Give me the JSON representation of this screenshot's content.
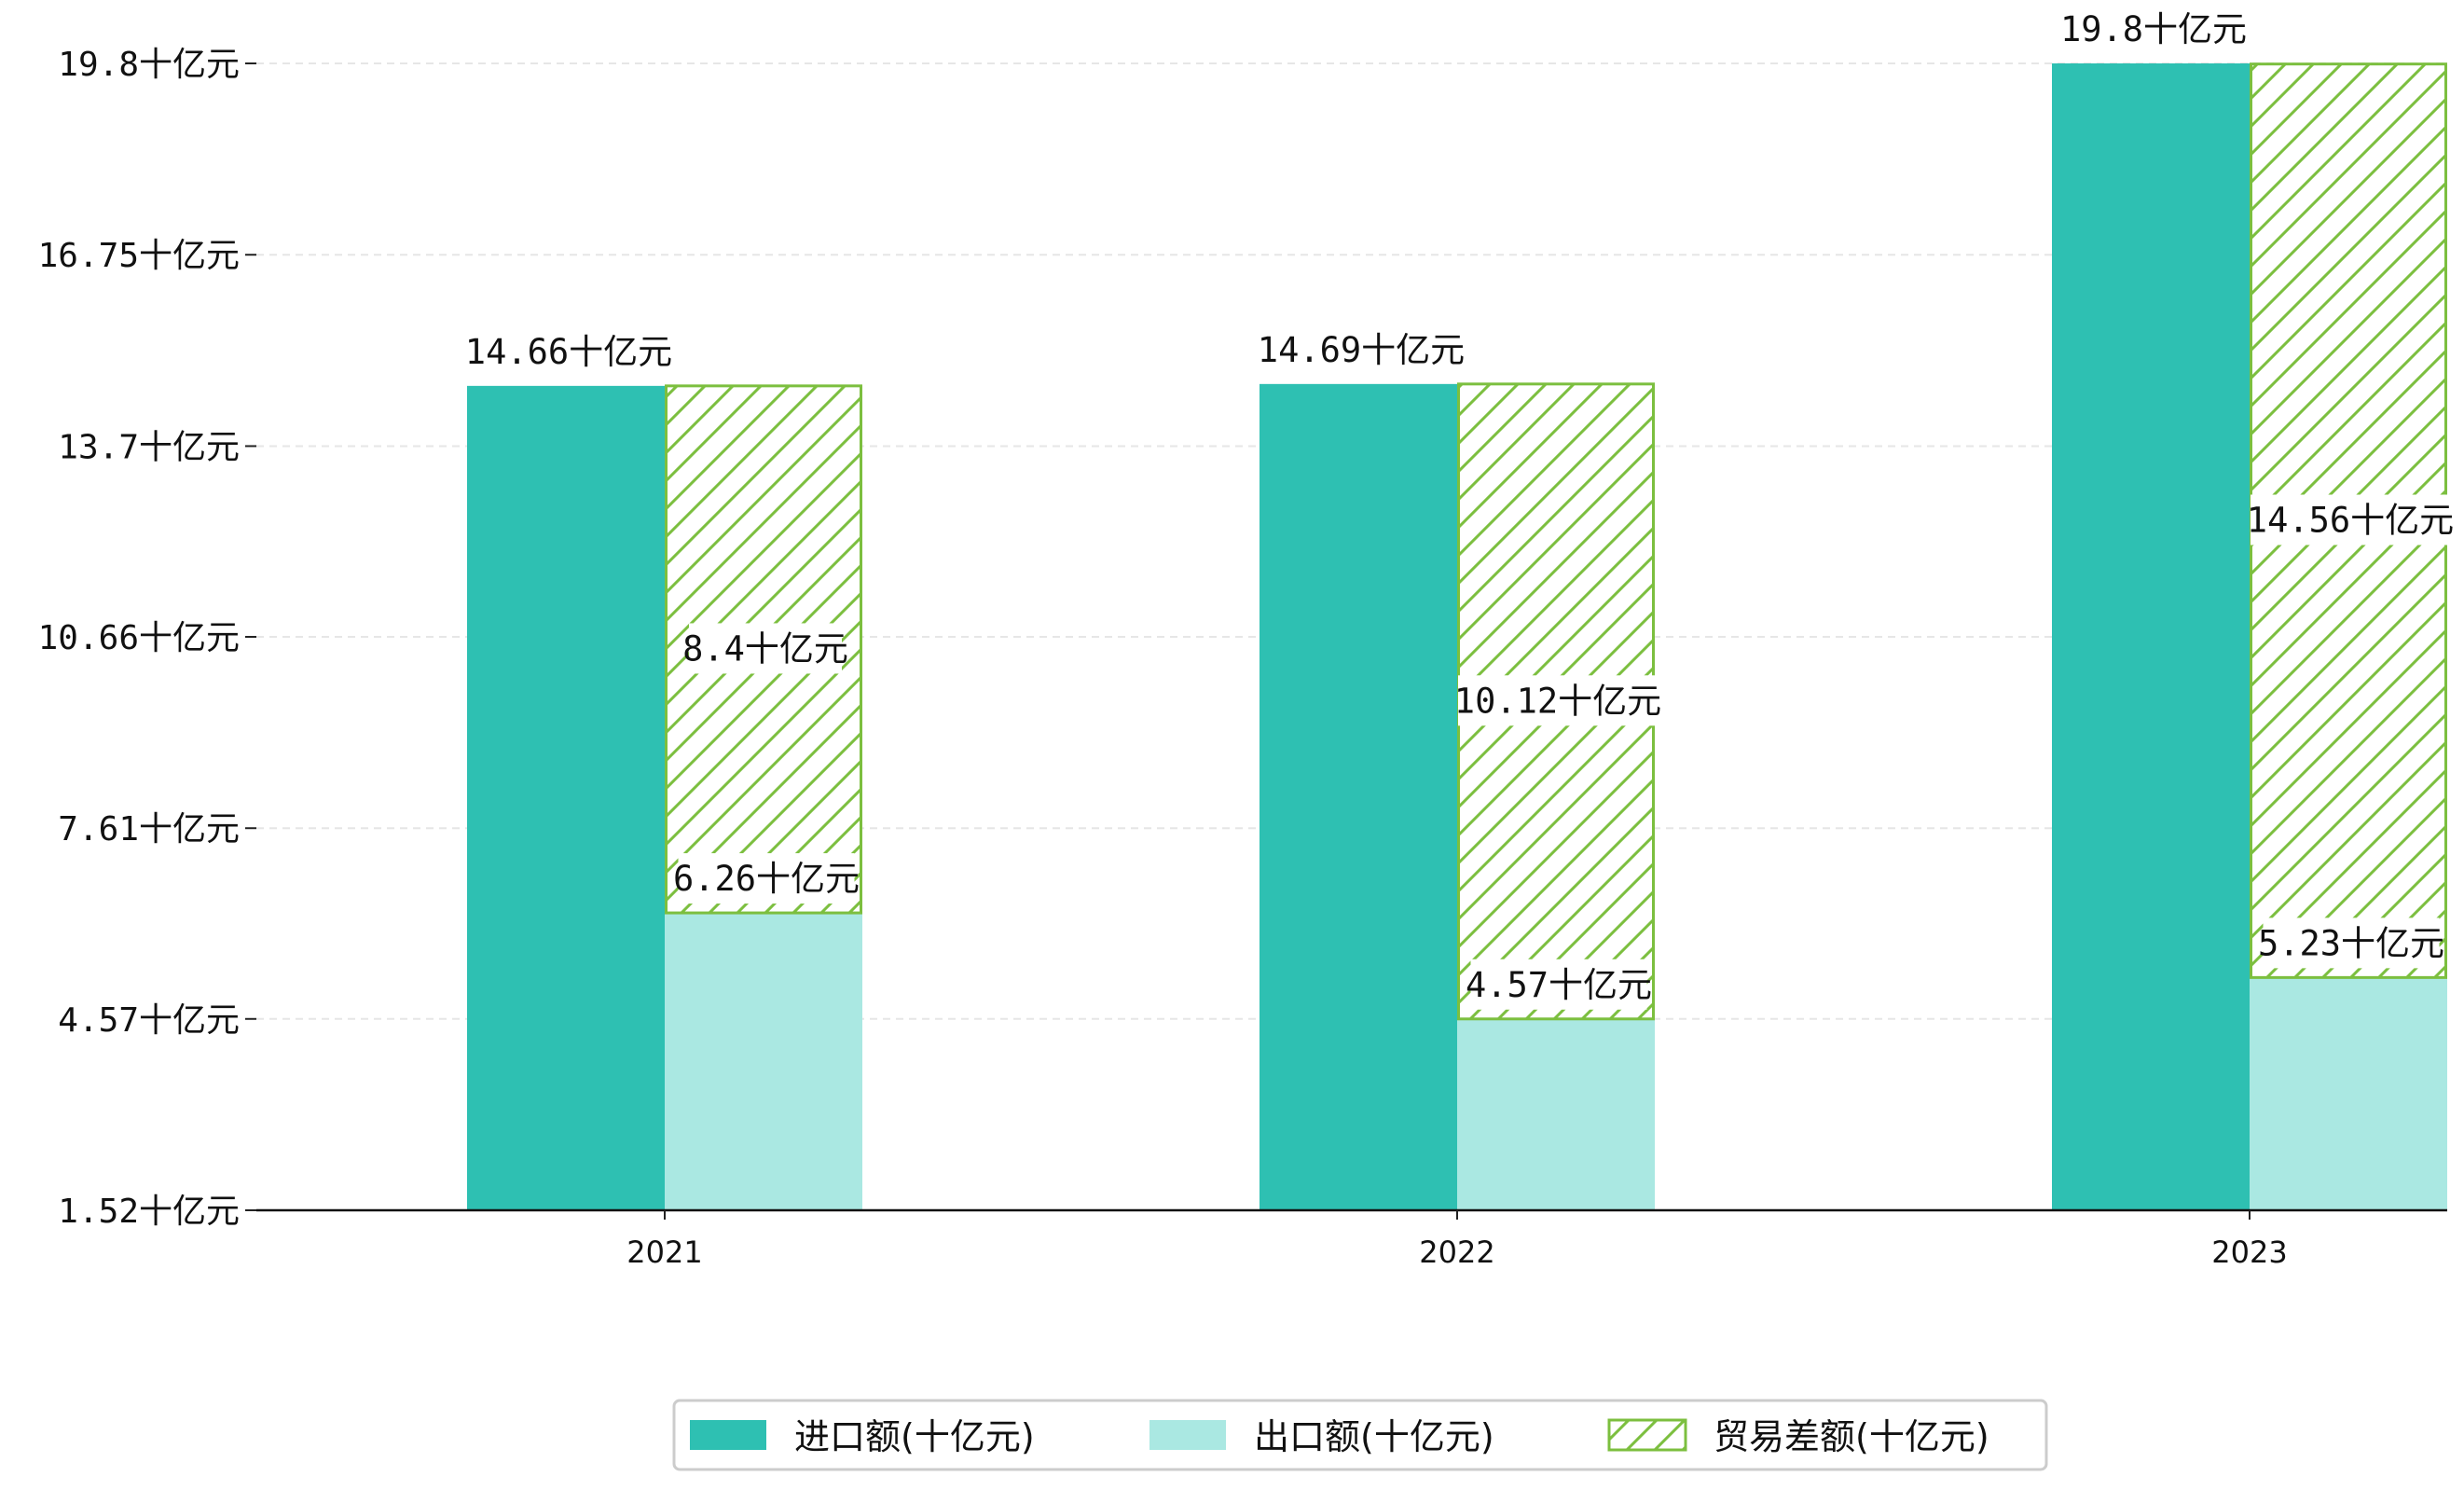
{
  "chart_data": {
    "type": "bar",
    "categories": [
      "2021",
      "2022",
      "2023"
    ],
    "series": [
      {
        "name": "进口额(十亿元)",
        "values": [
          14.66,
          14.69,
          19.8
        ],
        "color": "#2ec0b2",
        "labels": [
          "14.66十亿元",
          "14.69十亿元",
          "19.8十亿元"
        ]
      },
      {
        "name": "出口额(十亿元)",
        "values": [
          6.26,
          4.57,
          5.23
        ],
        "color": "#aae8e2",
        "labels": [
          "6.26十亿元",
          "4.57十亿元",
          "5.23十亿元"
        ]
      },
      {
        "name": "贸易差额(十亿元)",
        "values": [
          8.4,
          10.12,
          14.56
        ],
        "color": "#7cbf3f",
        "hatch": true,
        "stacked_on": "出口额(十亿元)",
        "labels": [
          "8.4十亿元",
          "10.12十亿元",
          "14.56十亿元"
        ]
      }
    ],
    "yticks": [
      "1.52十亿元",
      "4.57十亿元",
      "7.61十亿元",
      "10.66十亿元",
      "13.7十亿元",
      "16.75十亿元",
      "19.8十亿元"
    ],
    "ytick_values": [
      1.52,
      4.57,
      7.61,
      10.66,
      13.7,
      16.75,
      19.8
    ],
    "ylim": [
      1.52,
      19.8
    ],
    "xlabel": "",
    "ylabel": "",
    "grid": "horizontal dashed",
    "legend": "bottom-center"
  }
}
